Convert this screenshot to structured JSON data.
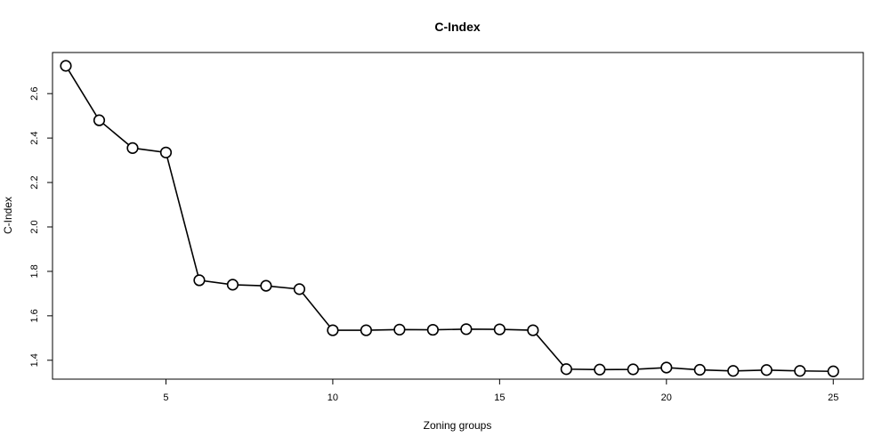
{
  "chart_data": {
    "type": "line",
    "title": "C-Index",
    "xlabel": "Zoning groups",
    "ylabel": "C-Index",
    "xlim": [
      1.6,
      25.9
    ],
    "ylim": [
      1.315,
      2.785
    ],
    "xticks": [
      5,
      10,
      15,
      20,
      25
    ],
    "xtick_labels": [
      "5",
      "10",
      "15",
      "20",
      "25"
    ],
    "yticks": [
      1.4,
      1.6,
      1.8,
      2.0,
      2.2,
      2.4,
      2.6
    ],
    "ytick_labels": [
      "1.4",
      "1.6",
      "1.8",
      "2.0",
      "2.2",
      "2.4",
      "2.6"
    ],
    "grid": false,
    "legend": "none",
    "marker": "open-circle",
    "line_color": "#000000",
    "x": [
      2,
      3,
      4,
      5,
      6,
      7,
      8,
      9,
      10,
      11,
      12,
      13,
      14,
      15,
      16,
      17,
      18,
      19,
      20,
      21,
      22,
      23,
      24,
      25
    ],
    "series": [
      {
        "values": [
          2.725,
          2.48,
          2.355,
          2.335,
          1.76,
          1.74,
          1.735,
          1.72,
          1.535,
          1.535,
          1.538,
          1.537,
          1.54,
          1.539,
          1.535,
          1.36,
          1.358,
          1.359,
          1.367,
          1.357,
          1.352,
          1.356,
          1.352,
          1.35
        ]
      }
    ]
  }
}
